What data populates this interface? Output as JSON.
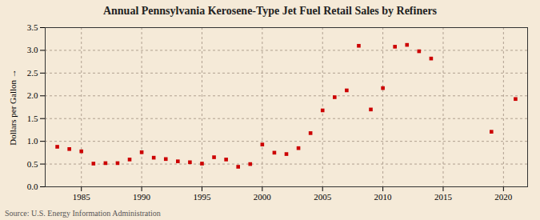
{
  "chart_data": {
    "type": "scatter",
    "title": "Annual Pennsylvania Kerosene-Type Jet Fuel Retail Sales by Refiners",
    "ylabel": "Dollars per Gallon",
    "source": "Source: U.S. Energy Information Administration",
    "x": [
      1983,
      1984,
      1985,
      1986,
      1987,
      1988,
      1989,
      1990,
      1991,
      1992,
      1993,
      1994,
      1995,
      1996,
      1997,
      1998,
      1999,
      2000,
      2001,
      2002,
      2003,
      2004,
      2005,
      2006,
      2007,
      2008,
      2009,
      2010,
      2011,
      2012,
      2013,
      2014,
      2019,
      2021
    ],
    "values": [
      0.88,
      0.83,
      0.78,
      0.51,
      0.52,
      0.52,
      0.6,
      0.76,
      0.64,
      0.61,
      0.56,
      0.54,
      0.51,
      0.65,
      0.6,
      0.44,
      0.5,
      0.93,
      0.75,
      0.72,
      0.85,
      1.18,
      1.68,
      1.97,
      2.12,
      3.1,
      1.7,
      2.17,
      3.08,
      3.12,
      2.98,
      2.82,
      1.21,
      1.93
    ],
    "color": "#cc0000",
    "marker": "square",
    "xlim": [
      1982,
      2022
    ],
    "ylim": [
      0.0,
      3.5
    ],
    "xticks": [
      1985,
      1990,
      1995,
      2000,
      2005,
      2010,
      2015,
      2020
    ],
    "yticks": [
      {
        "value": 0.0,
        "label": "0.0"
      },
      {
        "value": 0.5,
        "label": "0.5"
      },
      {
        "value": 1.0,
        "label": "1.0"
      },
      {
        "value": 1.5,
        "label": "1.5"
      },
      {
        "value": 2.0,
        "label": "2.0"
      },
      {
        "value": 2.5,
        "label": "2.5"
      },
      {
        "value": 3.0,
        "label": "3.0"
      },
      {
        "value": 3.5,
        "label": "3.5"
      }
    ],
    "grid": true
  }
}
